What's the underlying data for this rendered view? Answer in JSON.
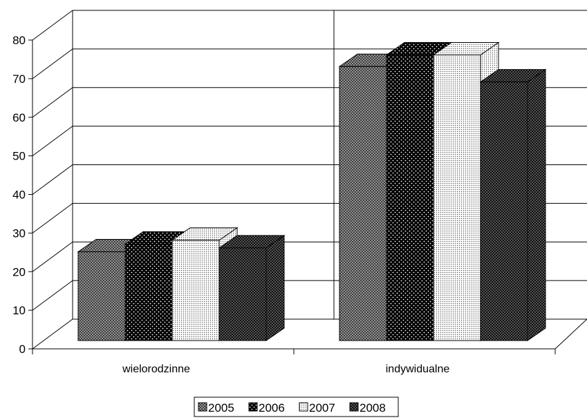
{
  "chart_data": {
    "type": "bar",
    "style": "3d-clustered-column",
    "categories": [
      "wielorodzinne",
      "indywidualne"
    ],
    "series": [
      {
        "name": "2005",
        "values": [
          23,
          71
        ],
        "pattern": "crosshatch",
        "color": "#909090"
      },
      {
        "name": "2006",
        "values": [
          25,
          74
        ],
        "pattern": "dots-dark",
        "color": "#000000"
      },
      {
        "name": "2007",
        "values": [
          26,
          74
        ],
        "pattern": "dots-light",
        "color": "#d8d8d8"
      },
      {
        "name": "2008",
        "values": [
          24,
          67
        ],
        "pattern": "crosshatch-dark",
        "color": "#5a5a5a"
      }
    ],
    "title": "",
    "xlabel": "",
    "ylabel": "",
    "ylim": [
      0,
      80
    ],
    "yticks": [
      0,
      10,
      20,
      30,
      40,
      50,
      60,
      70,
      80
    ],
    "grid": true,
    "legend_position": "bottom"
  }
}
